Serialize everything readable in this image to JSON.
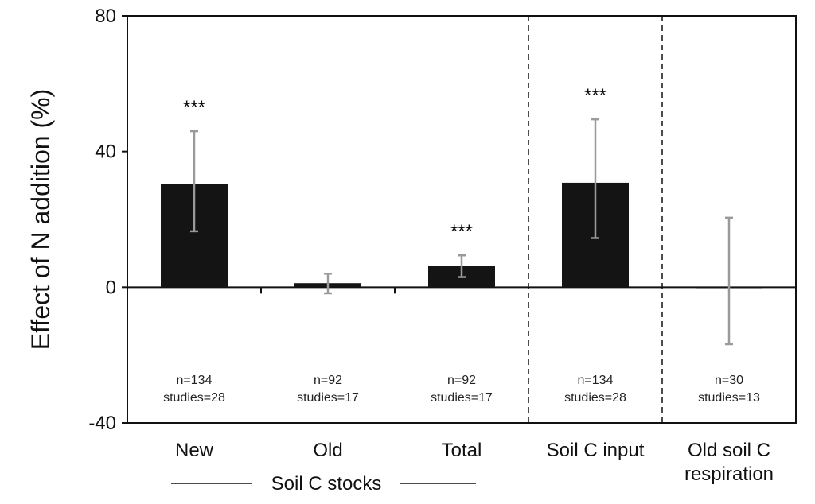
{
  "chart_data": {
    "type": "bar",
    "ylabel": "Effect of N addition (%)",
    "ylim": [
      -40,
      80
    ],
    "yticks": [
      80,
      40,
      0,
      -40
    ],
    "group_label": "Soil C stocks",
    "categories": [
      {
        "label": "New",
        "value": 30.5,
        "err_low": 16.5,
        "err_high": 46,
        "sig": "***",
        "n": "n=134",
        "studies": "studies=28"
      },
      {
        "label": "Old",
        "value": 1.2,
        "err_low": -1.8,
        "err_high": 4.0,
        "sig": "",
        "n": "n=92",
        "studies": "studies=17"
      },
      {
        "label": "Total",
        "value": 6.2,
        "err_low": 3.0,
        "err_high": 9.4,
        "sig": "***",
        "n": "n=92",
        "studies": "studies=17"
      },
      {
        "label": "Soil C input",
        "value": 30.8,
        "err_low": 14.5,
        "err_high": 49.5,
        "sig": "***",
        "n": "n=134",
        "studies": "studies=28"
      },
      {
        "label": "Old soil C respiration",
        "label_lines": [
          "Old soil C",
          "respiration"
        ],
        "value": 0.2,
        "err_low": -16.8,
        "err_high": 20.5,
        "sig": "",
        "n": "n=30",
        "studies": "studies=13"
      }
    ],
    "grid": false,
    "legend": "none"
  }
}
